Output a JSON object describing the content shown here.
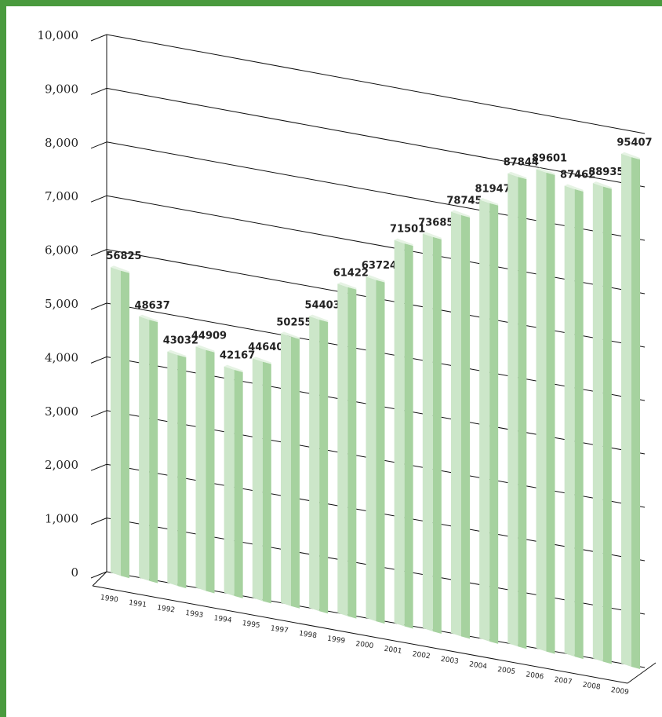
{
  "chart_data": {
    "type": "bar",
    "title": "",
    "xlabel": "",
    "ylabel": "",
    "ylim": [
      0,
      10000
    ],
    "yticks": [
      "0",
      "1,000",
      "2,000",
      "3,000",
      "4,000",
      "5,000",
      "6,000",
      "7,000",
      "8,000",
      "9,000",
      "10,000"
    ],
    "categories": [
      "1990",
      "1991",
      "1992",
      "1993",
      "1994",
      "1995",
      "1997",
      "1998",
      "1999",
      "2000",
      "2001",
      "2002",
      "2003",
      "2004",
      "2005",
      "2006",
      "2007",
      "2008",
      "2009"
    ],
    "value_labels": [
      "56825",
      "48637",
      "43032",
      "44909",
      "42167",
      "44640",
      "50255",
      "54403",
      "61422",
      "63724",
      "71501",
      "73685",
      "78745",
      "81947",
      "87844",
      "89601",
      "87462",
      "88935",
      "95407"
    ],
    "values": [
      5682.5,
      4863.7,
      4303.2,
      4490.9,
      4216.7,
      4464.0,
      5025.5,
      5440.3,
      6142.2,
      6372.4,
      7150.1,
      7368.5,
      7874.5,
      8194.7,
      8784.4,
      8960.1,
      8746.2,
      8893.5,
      9540.7
    ],
    "grid": true,
    "legend": "none",
    "colors": {
      "frame": "#4a9a3e",
      "bar_front": "#cce6c9",
      "bar_side": "#a6d29f",
      "bar_top": "#e6f3e4"
    }
  }
}
